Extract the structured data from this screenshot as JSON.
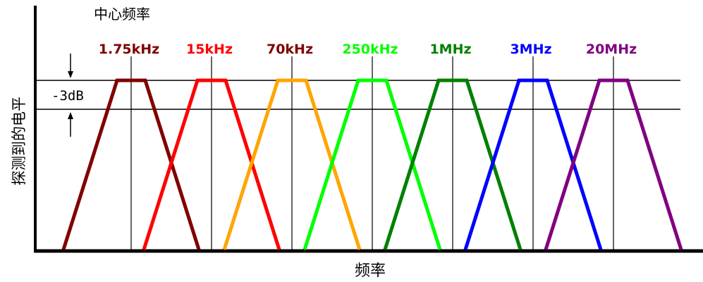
{
  "chart_data": {
    "type": "area",
    "title": "中心频率",
    "xlabel": "频率",
    "ylabel": "探测到的电平",
    "annotation": "-3dB",
    "grid": false,
    "bands": [
      {
        "name": "1.75kHz",
        "color": "#800000"
      },
      {
        "name": "15kHz",
        "color": "#ff0000"
      },
      {
        "name": "70kHz",
        "color": "#ffa500"
      },
      {
        "name": "250kHz",
        "color": "#00ff00"
      },
      {
        "name": "1MHz",
        "color": "#008000"
      },
      {
        "name": "3MHz",
        "color": "#0000ff"
      },
      {
        "name": "20MHz",
        "color": "#800080"
      }
    ],
    "band_label_colors": [
      "#800000",
      "#ff0000",
      "#800000",
      "#00ff00",
      "#008000",
      "#0000ff",
      "#800080"
    ]
  }
}
